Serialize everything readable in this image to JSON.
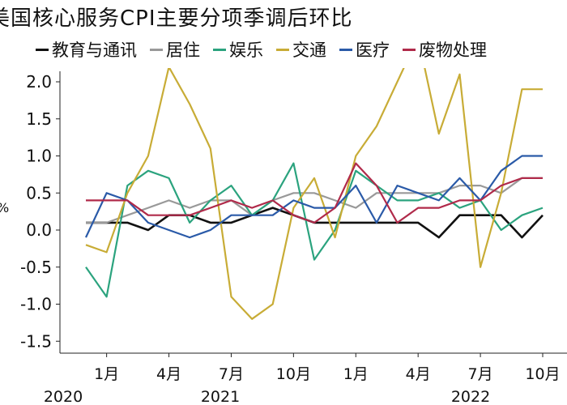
{
  "chart_data": {
    "type": "line",
    "title": "美国核心服务CPI主要分项季调后环比",
    "xlabel": "",
    "ylabel": "%",
    "ylim": [
      -1.7,
      2.2
    ],
    "yticks": [
      "2.0",
      "1.5",
      "1.0",
      "0.5",
      "0.0",
      "-0.5",
      "-1.0",
      "-1.5"
    ],
    "ytick_values": [
      2.0,
      1.5,
      1.0,
      0.5,
      0.0,
      -0.5,
      -1.0,
      -1.5
    ],
    "x": [
      "2019-12",
      "2020-01",
      "2020-02",
      "2020-03",
      "2020-04",
      "2020-05",
      "2020-06",
      "2020-07",
      "2020-08",
      "2020-09",
      "2020-10",
      "2020-11",
      "2020-12",
      "2021-01",
      "2021-02",
      "2021-03",
      "2021-04",
      "2021-05",
      "2021-06",
      "2021-07",
      "2021-08",
      "2021-09",
      "2021-10"
    ],
    "xtick_labels": [
      {
        "x": "2020-01",
        "label": "1月"
      },
      {
        "x": "2020-04",
        "label": "4月"
      },
      {
        "x": "2020-07",
        "label": "7月"
      },
      {
        "x": "2020-10",
        "label": "10月"
      },
      {
        "x": "2021-01",
        "label": "1月"
      },
      {
        "x": "2021-04",
        "label": "4月"
      },
      {
        "x": "2021-07",
        "label": "7月"
      },
      {
        "x": "2021-10",
        "label": "10月"
      }
    ],
    "year_labels": [
      "2020",
      "2021",
      "2022"
    ],
    "legend_position": "top",
    "grid": false,
    "series": [
      {
        "name": "教育与通讯",
        "color": "#111111",
        "values": [
          0.1,
          0.1,
          0.1,
          0.0,
          0.2,
          0.2,
          0.1,
          0.1,
          0.2,
          0.3,
          0.2,
          0.1,
          0.1,
          0.1,
          0.1,
          0.1,
          0.1,
          -0.1,
          0.2,
          0.2,
          0.2,
          -0.1,
          0.2
        ]
      },
      {
        "name": "居住",
        "color": "#999999",
        "values": [
          0.1,
          0.1,
          0.2,
          0.3,
          0.4,
          0.3,
          0.4,
          0.4,
          0.2,
          0.4,
          0.5,
          0.5,
          0.4,
          0.3,
          0.5,
          0.5,
          0.5,
          0.5,
          0.6,
          0.6,
          0.5,
          0.7,
          0.7
        ]
      },
      {
        "name": "娱乐",
        "color": "#2ba37e",
        "values": [
          -0.5,
          -0.9,
          0.6,
          0.8,
          0.7,
          0.1,
          0.4,
          0.6,
          0.2,
          0.4,
          0.9,
          -0.4,
          0.0,
          0.8,
          0.6,
          0.4,
          0.4,
          0.5,
          0.3,
          0.4,
          0.0,
          0.2,
          0.3
        ]
      },
      {
        "name": "交通",
        "color": "#c8ac36",
        "values": [
          -0.2,
          -0.3,
          0.5,
          1.0,
          2.2,
          1.7,
          1.1,
          -0.9,
          -1.2,
          -1.0,
          0.3,
          0.7,
          -0.1,
          1.0,
          1.4,
          2.0,
          2.6,
          1.3,
          2.1,
          -0.5,
          0.5,
          1.9,
          1.9
        ]
      },
      {
        "name": "医疗",
        "color": "#2a5aa8",
        "values": [
          -0.1,
          0.5,
          0.4,
          0.1,
          0.0,
          -0.1,
          0.0,
          0.2,
          0.2,
          0.2,
          0.4,
          0.3,
          0.3,
          0.6,
          0.1,
          0.6,
          0.5,
          0.4,
          0.7,
          0.4,
          0.8,
          1.0,
          1.0
        ]
      },
      {
        "name": "废物处理",
        "color": "#b02a4a",
        "values": [
          0.4,
          0.4,
          0.4,
          0.2,
          0.2,
          0.2,
          0.3,
          0.4,
          0.3,
          0.4,
          0.2,
          0.1,
          0.3,
          0.9,
          0.6,
          0.1,
          0.3,
          0.3,
          0.4,
          0.4,
          0.6,
          0.7,
          0.7
        ]
      }
    ]
  }
}
